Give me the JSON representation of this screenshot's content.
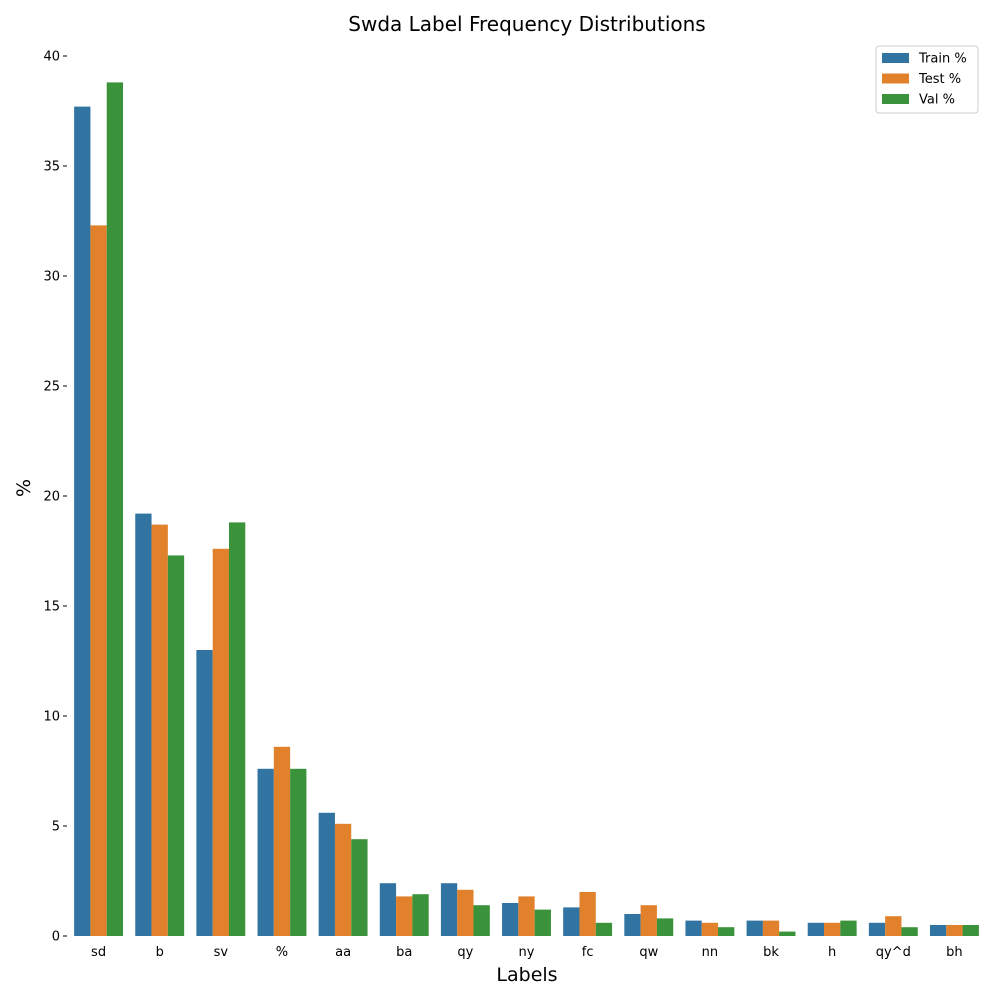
{
  "chart_data": {
    "type": "bar",
    "title": "Swda Label Frequency Distributions",
    "xlabel": "Labels",
    "ylabel": "%",
    "ylim": [
      0,
      40
    ],
    "yticks": [
      0,
      5,
      10,
      15,
      20,
      25,
      30,
      35,
      40
    ],
    "grid": false,
    "legend_position": "top-right",
    "categories": [
      "sd",
      "b",
      "sv",
      "%",
      "aa",
      "ba",
      "qy",
      "ny",
      "fc",
      "qw",
      "nn",
      "bk",
      "h",
      "qy^d",
      "bh"
    ],
    "series": [
      {
        "name": "Train %",
        "color": "#3274a1",
        "values": [
          37.7,
          19.2,
          13.0,
          7.6,
          5.6,
          2.4,
          2.4,
          1.5,
          1.3,
          1.0,
          0.7,
          0.7,
          0.6,
          0.6,
          0.5
        ]
      },
      {
        "name": "Test %",
        "color": "#e1812c",
        "values": [
          32.3,
          18.7,
          17.6,
          8.6,
          5.1,
          1.8,
          2.1,
          1.8,
          2.0,
          1.4,
          0.6,
          0.7,
          0.6,
          0.9,
          0.5
        ]
      },
      {
        "name": "Val %",
        "color": "#3a923a",
        "values": [
          38.8,
          17.3,
          18.8,
          7.6,
          4.4,
          1.9,
          1.4,
          1.2,
          0.6,
          0.8,
          0.4,
          0.2,
          0.7,
          0.4,
          0.5
        ]
      }
    ]
  }
}
